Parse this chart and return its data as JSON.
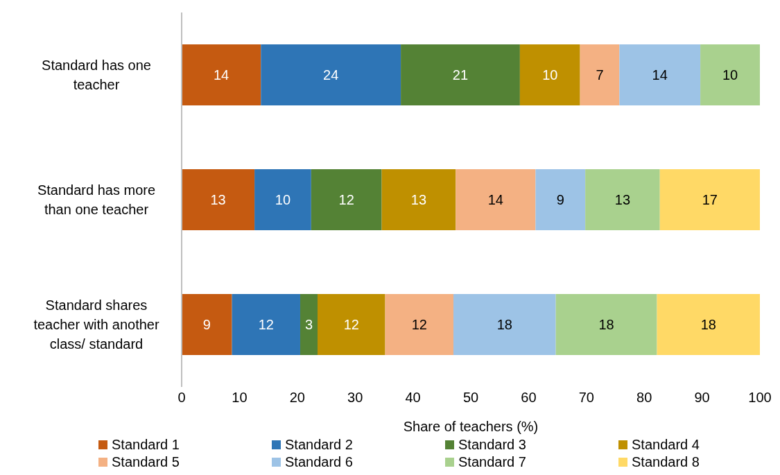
{
  "chart_data": {
    "type": "bar",
    "orientation": "horizontal",
    "stacked": true,
    "xlabel": "Share of teachers (%)",
    "categories": [
      "Standard has one teacher",
      "Standard has more than one teacher",
      "Standard shares teacher with another class/ standard"
    ],
    "series": [
      {
        "name": "Standard 1",
        "color": "#c55a11",
        "values": [
          13.7,
          12.6,
          8.7
        ],
        "value_labels": [
          "14",
          "13",
          "9"
        ]
      },
      {
        "name": "Standard 2",
        "color": "#2e75b6",
        "values": [
          24.2,
          9.8,
          11.8
        ],
        "value_labels": [
          "24",
          "10",
          "12"
        ]
      },
      {
        "name": "Standard 3",
        "color": "#548235",
        "values": [
          20.6,
          12.2,
          3.0
        ],
        "value_labels": [
          "21",
          "12",
          "3"
        ]
      },
      {
        "name": "Standard 4",
        "color": "#bf9000",
        "values": [
          10.4,
          12.8,
          11.7
        ],
        "value_labels": [
          "10",
          "13",
          "12"
        ]
      },
      {
        "name": "Standard 5",
        "color": "#f4b183",
        "values": [
          6.8,
          13.8,
          11.8
        ],
        "value_labels": [
          "7",
          "14",
          "12"
        ]
      },
      {
        "name": "Standard 6",
        "color": "#9dc3e6",
        "values": [
          14.0,
          8.6,
          17.7
        ],
        "value_labels": [
          "14",
          "9",
          "18"
        ]
      },
      {
        "name": "Standard 7",
        "color": "#a9d18e",
        "values": [
          10.3,
          12.9,
          17.5
        ],
        "value_labels": [
          "10",
          "13",
          "18"
        ]
      },
      {
        "name": "Standard 8",
        "color": "#ffd966",
        "values": [
          null,
          17.3,
          17.8
        ],
        "value_labels": [
          null,
          "17",
          "18"
        ]
      }
    ],
    "xlim": [
      0,
      100
    ],
    "xticks": [
      0,
      10,
      20,
      30,
      40,
      50,
      60,
      70,
      80,
      90,
      100
    ],
    "legend": "bottom"
  }
}
